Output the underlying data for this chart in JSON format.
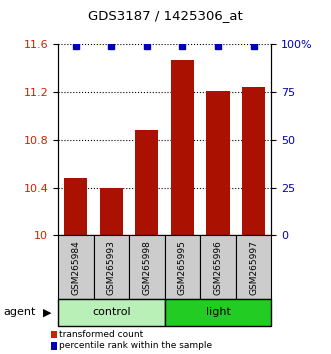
{
  "title": "GDS3187 / 1425306_at",
  "samples": [
    "GSM265984",
    "GSM265993",
    "GSM265998",
    "GSM265995",
    "GSM265996",
    "GSM265997"
  ],
  "bar_values": [
    10.48,
    10.4,
    10.88,
    11.47,
    11.21,
    11.24
  ],
  "percentile_values": [
    99,
    99,
    99,
    99,
    99,
    99
  ],
  "groups": [
    {
      "label": "control",
      "count": 3,
      "color": "#b8f0b8"
    },
    {
      "label": "light",
      "count": 3,
      "color": "#22cc22"
    }
  ],
  "ylim_left": [
    10.0,
    11.6
  ],
  "ylim_right": [
    0,
    100
  ],
  "yticks_left": [
    10.0,
    10.4,
    10.8,
    11.2,
    11.6
  ],
  "yticks_right": [
    0,
    25,
    50,
    75,
    100
  ],
  "ytick_labels_left": [
    "10",
    "10.4",
    "10.8",
    "11.2",
    "11.6"
  ],
  "ytick_labels_right": [
    "0",
    "25",
    "50",
    "75",
    "100%"
  ],
  "bar_color": "#aa1100",
  "percentile_color": "#0000bb",
  "bar_width": 0.65,
  "agent_label": "agent",
  "legend_items": [
    {
      "label": "transformed count",
      "color": "#cc2200"
    },
    {
      "label": "percentile rank within the sample",
      "color": "#0000bb"
    }
  ],
  "sample_box_color": "#cccccc",
  "tick_label_color_left": "#cc2200",
  "tick_label_color_right": "#0000bb",
  "title_fontsize": 9.5
}
